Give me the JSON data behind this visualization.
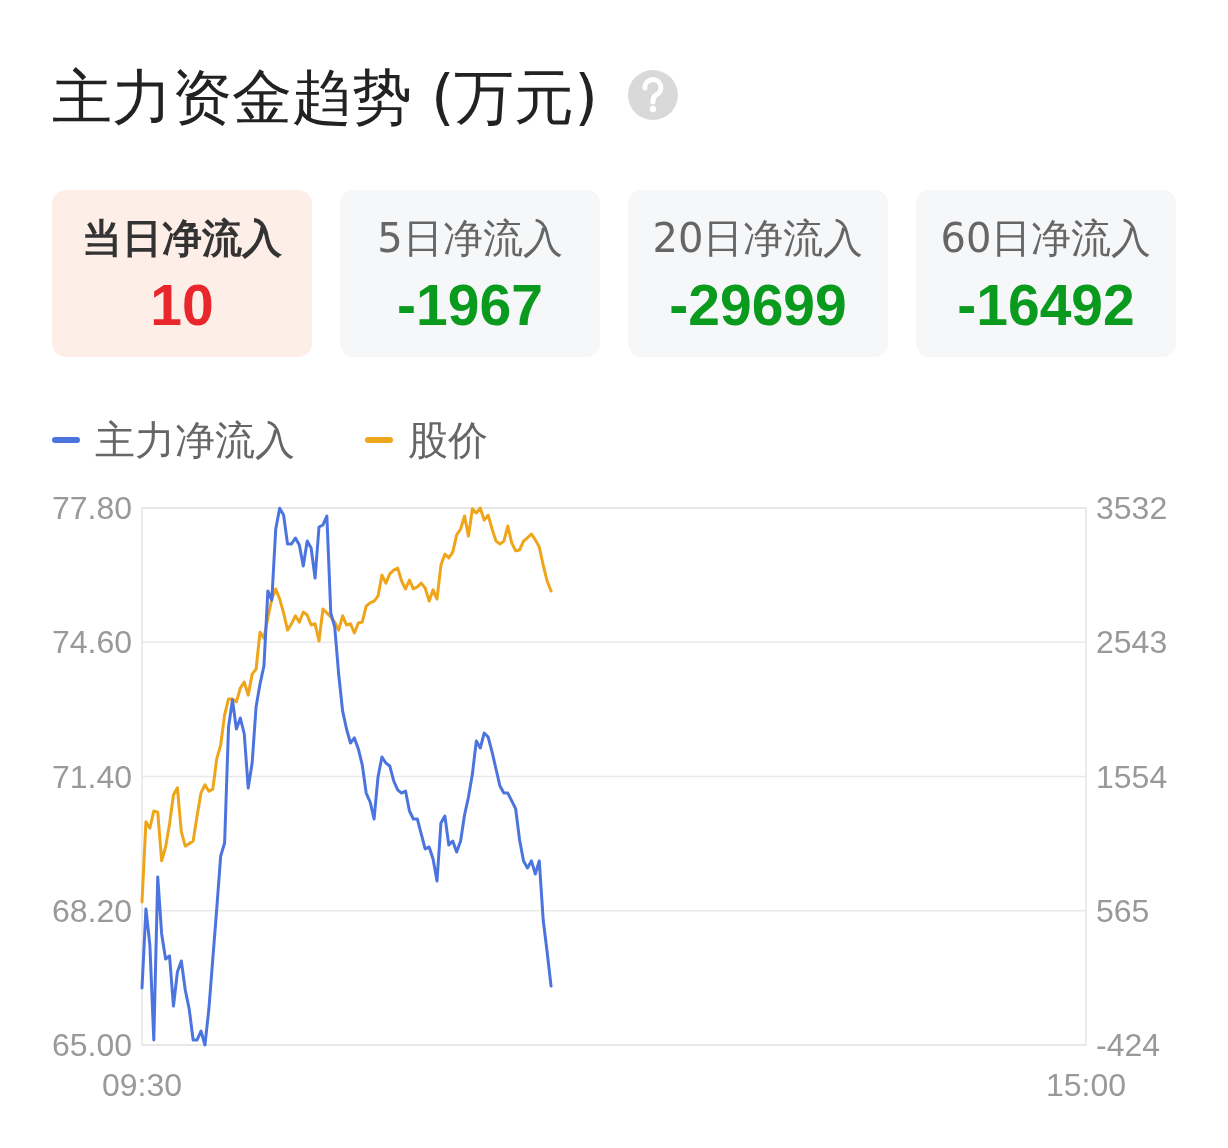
{
  "chart_data": [
    {
      "type": "other",
      "title": "主力资金趋势 (万元)",
      "categories": [
        "当日净流入",
        "5日净流入",
        "20日净流入",
        "60日净流入"
      ],
      "values": [
        10,
        -1967,
        -29699,
        -16492
      ],
      "colors": [
        "#fdeee8",
        "#f6f7f9",
        "#f6f7f9",
        "#f6f7f9"
      ],
      "data_labels": true
    },
    {
      "type": "line",
      "legend": "top left",
      "grid": "y",
      "categories": [
        "09:30",
        null,
        null,
        null,
        null,
        null,
        null,
        null,
        null,
        null,
        null,
        null,
        null,
        null,
        null,
        null,
        null,
        null,
        null,
        null,
        null,
        null,
        null,
        null,
        null,
        null,
        null,
        null,
        null,
        null,
        null,
        null,
        null,
        null,
        null,
        null,
        null,
        null,
        null,
        null,
        null,
        null,
        null,
        null,
        null,
        null,
        null,
        null,
        null,
        null,
        null,
        null,
        null,
        null,
        null,
        null,
        null,
        null,
        null,
        null,
        null,
        null,
        null,
        null,
        null,
        null,
        null,
        null,
        null,
        null,
        null,
        null,
        null,
        null,
        null,
        null,
        null,
        null,
        null,
        null,
        null,
        null,
        null,
        null,
        null,
        null,
        null,
        null,
        null,
        null,
        null,
        null,
        null,
        null,
        null,
        null,
        null,
        null,
        null,
        null,
        null,
        null,
        null,
        null,
        null,
        null,
        null,
        null,
        null,
        null,
        null,
        null,
        null,
        null,
        null,
        null,
        null,
        null,
        null,
        null,
        null,
        null,
        null,
        null,
        null,
        null,
        null,
        null,
        null,
        null,
        null,
        null,
        null,
        null,
        null,
        null,
        null,
        null,
        null,
        null,
        null,
        null,
        null,
        null,
        null,
        null,
        null,
        null,
        null,
        null,
        null,
        null,
        null,
        null,
        null,
        null,
        null,
        null,
        null,
        null,
        null,
        null,
        null,
        null,
        null,
        null,
        null,
        null,
        null,
        null,
        null,
        null,
        null,
        null,
        null,
        null,
        null,
        null,
        null,
        null,
        null,
        null,
        null,
        null,
        null,
        null,
        null,
        null,
        null,
        null,
        null,
        null,
        null,
        null,
        null,
        null,
        null,
        null,
        null,
        null,
        null,
        null,
        null,
        null,
        null,
        null,
        null,
        null,
        null,
        null,
        null,
        null,
        null,
        null,
        null,
        null,
        null,
        null,
        null,
        null,
        null,
        null,
        null,
        null,
        null,
        null,
        null,
        null,
        null,
        null,
        null,
        null,
        null,
        null,
        null,
        null,
        null,
        null,
        null,
        null,
        "15:00"
      ],
      "ylim": [
        65,
        77.8
      ],
      "yticks": [
        {
          "value": 65,
          "label": "65.00"
        },
        {
          "value": 68.2,
          "label": "68.20"
        },
        {
          "value": 71.4,
          "label": "71.40"
        },
        {
          "value": 74.6,
          "label": "74.60"
        },
        {
          "value": 77.8,
          "label": "77.80"
        }
      ],
      "y2lim": [
        -424,
        3532
      ],
      "y2ticks": [
        -424,
        565,
        1554,
        2543,
        3532
      ],
      "series": [
        {
          "name": "主力净流入",
          "color": "#4b74df",
          "axis": "y2",
          "values": [
            -4,
            578,
            313,
            -387,
            814,
            394,
            210,
            232,
            -137,
            114,
            195,
            -19,
            -159,
            -387,
            -387,
            -321,
            -424,
            -159,
            210,
            578,
            968,
            1064,
            1919,
            2118,
            1904,
            1985,
            1867,
            1469,
            1653,
            2066,
            2235,
            2368,
            2921,
            2854,
            3377,
            3530,
            3480,
            3267,
            3267,
            3311,
            3259,
            3105,
            3289,
            3237,
            3016,
            3392,
            3407,
            3473,
            2759,
            2655,
            2309,
            2037,
            1904,
            1801,
            1838,
            1757,
            1639,
            1432,
            1366,
            1241,
            1550,
            1698,
            1653,
            1631,
            1521,
            1455,
            1432,
            1447,
            1300,
            1241,
            1241,
            1130,
            1020,
            1035,
            946,
            784,
            1211,
            1263,
            1049,
            1079,
            998,
            1079,
            1270,
            1403,
            1572,
            1816,
            1764,
            1874,
            1845,
            1735,
            1609,
            1484,
            1432,
            1432,
            1374,
            1315,
            1086,
            932,
            880,
            932,
            836,
            932,
            497,
            261,
            10,
            null,
            null,
            null,
            null,
            null,
            null,
            null,
            null,
            null,
            null,
            null,
            null,
            null,
            null,
            null,
            null,
            null,
            null,
            null,
            null,
            null,
            null,
            null,
            null,
            null,
            null,
            null,
            null,
            null,
            null,
            null,
            null,
            null,
            null,
            null,
            null,
            null,
            null,
            null,
            null,
            null,
            null,
            null,
            null,
            null,
            null,
            null,
            null,
            null,
            null,
            null,
            null,
            null,
            null,
            null,
            null,
            null,
            null,
            null,
            null,
            null,
            null,
            null,
            null,
            null,
            null,
            null,
            null,
            null,
            null,
            null,
            null,
            null,
            null,
            null,
            null,
            null,
            null,
            null,
            null,
            null,
            null,
            null,
            null,
            null,
            null,
            null,
            null,
            null,
            null,
            null,
            null,
            null,
            null,
            null,
            null,
            null,
            null,
            null,
            null,
            null,
            null,
            null,
            null,
            null,
            null,
            null,
            null,
            null,
            null,
            null,
            null,
            null,
            null,
            null,
            null,
            null,
            null,
            null,
            null,
            null,
            null,
            null,
            null,
            null,
            null,
            null,
            null,
            null,
            null,
            null,
            null,
            null,
            null,
            null,
            null
          ]
        },
        {
          "name": "股价",
          "color": "#efa51a",
          "values": [
            68.41,
            70.32,
            70.17,
            70.58,
            70.55,
            69.39,
            69.72,
            70.27,
            70.96,
            71.13,
            70.08,
            69.74,
            69.8,
            69.86,
            70.46,
            71.01,
            71.2,
            71.05,
            71.1,
            71.82,
            72.15,
            72.87,
            73.25,
            73.25,
            73.18,
            73.51,
            73.65,
            73.34,
            73.84,
            73.96,
            74.84,
            74.7,
            75.18,
            75.63,
            75.87,
            75.63,
            75.3,
            74.89,
            75.04,
            75.23,
            75.08,
            75.32,
            75.25,
            75.01,
            75.04,
            74.63,
            75.39,
            75.3,
            75.2,
            75.08,
            74.89,
            75.23,
            75.01,
            75.04,
            74.82,
            75.06,
            75.08,
            75.46,
            75.54,
            75.58,
            75.7,
            76.2,
            76.01,
            76.23,
            76.32,
            76.37,
            76.06,
            75.87,
            76.08,
            75.87,
            75.92,
            76.01,
            75.89,
            75.58,
            75.85,
            75.63,
            76.44,
            76.7,
            76.61,
            76.75,
            77.16,
            77.3,
            77.61,
            77.13,
            77.78,
            77.68,
            77.8,
            77.51,
            77.63,
            77.3,
            77.01,
            76.94,
            77.01,
            77.37,
            76.97,
            76.78,
            76.8,
            77.01,
            77.09,
            77.18,
            77.04,
            76.87,
            76.44,
            76.06,
            75.82,
            null,
            null,
            null,
            null,
            null,
            null,
            null,
            null,
            null,
            null,
            null,
            null,
            null,
            null,
            null,
            null,
            null,
            null,
            null,
            null,
            null,
            null,
            null,
            null,
            null,
            null,
            null,
            null,
            null,
            null,
            null,
            null,
            null,
            null,
            null,
            null,
            null,
            null,
            null,
            null,
            null,
            null,
            null,
            null,
            null,
            null,
            null,
            null,
            null,
            null,
            null,
            null,
            null,
            null,
            null,
            null,
            null,
            null,
            null,
            null,
            null,
            null,
            null,
            null,
            null,
            null,
            null,
            null,
            null,
            null,
            null,
            null,
            null,
            null,
            null,
            null,
            null,
            null,
            null,
            null,
            null,
            null,
            null,
            null,
            null,
            null,
            null,
            null,
            null,
            null,
            null,
            null,
            null,
            null,
            null,
            null,
            null,
            null,
            null,
            null,
            null,
            null,
            null,
            null,
            null,
            null,
            null,
            null,
            null,
            null,
            null,
            null,
            null,
            null,
            null,
            null,
            null,
            null,
            null,
            null,
            null,
            null,
            null,
            null,
            null,
            null,
            null,
            null,
            null,
            null,
            null,
            null,
            null,
            null,
            null,
            null
          ]
        }
      ]
    }
  ]
}
